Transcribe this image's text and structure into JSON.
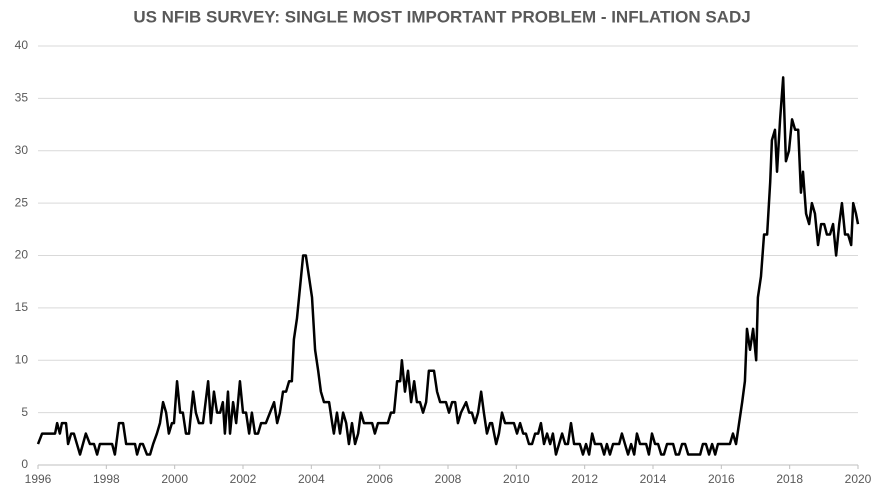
{
  "chart_data": {
    "type": "line",
    "title": "US NFIB SURVEY: SINGLE MOST IMPORTANT PROBLEM - INFLATION SADJ",
    "color": "#000000",
    "grid": true,
    "xlim": [
      1996,
      2020
    ],
    "xticks": [
      1996,
      1998,
      2000,
      2002,
      2004,
      2006,
      2008,
      2010,
      2012,
      2014,
      2016,
      2018,
      2020
    ],
    "ylim": [
      0,
      40
    ],
    "yticks": [
      0,
      5,
      10,
      15,
      20,
      25,
      30,
      35,
      40
    ],
    "x": [
      1996.0,
      1996.12,
      1996.5,
      1996.56,
      1996.64,
      1996.7,
      1996.82,
      1996.88,
      1996.97,
      1997.05,
      1997.14,
      1997.23,
      1997.4,
      1997.52,
      1997.64,
      1997.73,
      1997.81,
      1998.17,
      1998.25,
      1998.37,
      1998.49,
      1998.58,
      1998.84,
      1998.9,
      1998.99,
      1999.07,
      1999.19,
      1999.28,
      1999.37,
      1999.48,
      1999.57,
      1999.66,
      1999.75,
      1999.83,
      1999.92,
      1999.98,
      2000.07,
      2000.16,
      2000.24,
      2000.33,
      2000.42,
      2000.54,
      2000.62,
      2000.71,
      2000.83,
      2000.98,
      2001.06,
      2001.15,
      2001.24,
      2001.33,
      2001.41,
      2001.47,
      2001.56,
      2001.62,
      2001.71,
      2001.8,
      2001.91,
      2002.0,
      2002.09,
      2002.18,
      2002.26,
      2002.35,
      2002.44,
      2002.53,
      2002.67,
      2002.79,
      2002.91,
      2003.0,
      2003.08,
      2003.17,
      2003.26,
      2003.35,
      2003.43,
      2003.49,
      2003.58,
      2003.67,
      2003.76,
      2003.84,
      2003.93,
      2004.02,
      2004.11,
      2004.2,
      2004.28,
      2004.37,
      2004.52,
      2004.61,
      2004.66,
      2004.75,
      2004.84,
      2004.93,
      2005.02,
      2005.1,
      2005.19,
      2005.28,
      2005.37,
      2005.45,
      2005.54,
      2005.78,
      2005.86,
      2005.95,
      2006.24,
      2006.33,
      2006.42,
      2006.51,
      2006.6,
      2006.65,
      2006.74,
      2006.83,
      2006.92,
      2007.01,
      2007.09,
      2007.18,
      2007.27,
      2007.36,
      2007.44,
      2007.59,
      2007.68,
      2007.77,
      2007.94,
      2008.03,
      2008.12,
      2008.21,
      2008.29,
      2008.38,
      2008.53,
      2008.62,
      2008.7,
      2008.79,
      2008.88,
      2008.97,
      2009.05,
      2009.14,
      2009.23,
      2009.29,
      2009.41,
      2009.49,
      2009.58,
      2009.67,
      2009.93,
      2010.02,
      2010.11,
      2010.2,
      2010.28,
      2010.37,
      2010.46,
      2010.55,
      2010.64,
      2010.72,
      2010.81,
      2010.9,
      2010.99,
      2011.07,
      2011.16,
      2011.25,
      2011.34,
      2011.43,
      2011.51,
      2011.6,
      2011.69,
      2011.78,
      2011.86,
      2011.95,
      2012.04,
      2012.13,
      2012.22,
      2012.3,
      2012.39,
      2012.48,
      2012.57,
      2012.65,
      2012.74,
      2012.83,
      2012.92,
      2013.01,
      2013.09,
      2013.18,
      2013.27,
      2013.36,
      2013.45,
      2013.53,
      2013.62,
      2013.71,
      2013.8,
      2013.88,
      2013.97,
      2014.06,
      2014.15,
      2014.24,
      2014.32,
      2014.41,
      2014.5,
      2014.59,
      2014.67,
      2014.76,
      2014.85,
      2014.94,
      2015.03,
      2015.11,
      2015.2,
      2015.29,
      2015.38,
      2015.46,
      2015.55,
      2015.64,
      2015.73,
      2015.82,
      2015.9,
      2015.99,
      2016.08,
      2016.25,
      2016.34,
      2016.43,
      2016.52,
      2016.61,
      2016.69,
      2016.75,
      2016.84,
      2016.93,
      2017.02,
      2017.07,
      2017.16,
      2017.25,
      2017.34,
      2017.43,
      2017.48,
      2017.57,
      2017.63,
      2017.72,
      2017.81,
      2017.89,
      2017.98,
      2018.07,
      2018.16,
      2018.25,
      2018.33,
      2018.39,
      2018.48,
      2018.57,
      2018.65,
      2018.74,
      2018.83,
      2018.92,
      2019.01,
      2019.09,
      2019.18,
      2019.27,
      2019.36,
      2019.45,
      2019.53,
      2019.62,
      2019.71,
      2019.8,
      2019.86,
      2019.94,
      2020.0
    ],
    "values": [
      2,
      3,
      3,
      4,
      3,
      4,
      4,
      2,
      3,
      3,
      2,
      1,
      3,
      2,
      2,
      1,
      2,
      2,
      1,
      4,
      4,
      2,
      2,
      1,
      2,
      2,
      1,
      1,
      2,
      3,
      4,
      6,
      5,
      3,
      4,
      4,
      8,
      5,
      5,
      3,
      3,
      7,
      5,
      4,
      4,
      8,
      4,
      7,
      5,
      5,
      6,
      3,
      7,
      3,
      6,
      4,
      8,
      5,
      5,
      3,
      5,
      3,
      3,
      4,
      4,
      5,
      6,
      4,
      5,
      7,
      7,
      8,
      8,
      12,
      14,
      17,
      20,
      20,
      18,
      16,
      11,
      9,
      7,
      6,
      6,
      4,
      3,
      5,
      3,
      5,
      4,
      2,
      4,
      2,
      3,
      5,
      4,
      4,
      3,
      4,
      4,
      5,
      5,
      8,
      8,
      10,
      7,
      9,
      6,
      8,
      6,
      6,
      5,
      6,
      9,
      9,
      7,
      6,
      6,
      5,
      6,
      6,
      4,
      5,
      6,
      5,
      5,
      4,
      5,
      7,
      5,
      3,
      4,
      4,
      2,
      3,
      5,
      4,
      4,
      3,
      4,
      3,
      3,
      2,
      2,
      3,
      3,
      4,
      2,
      3,
      2,
      3,
      1,
      2,
      3,
      2,
      2,
      4,
      2,
      2,
      2,
      1,
      2,
      1,
      3,
      2,
      2,
      2,
      1,
      2,
      1,
      2,
      2,
      2,
      3,
      2,
      1,
      2,
      1,
      3,
      2,
      2,
      2,
      1,
      3,
      2,
      2,
      1,
      1,
      2,
      2,
      2,
      1,
      1,
      2,
      2,
      1,
      1,
      1,
      1,
      1,
      2,
      2,
      1,
      2,
      1,
      2,
      2,
      2,
      2,
      3,
      2,
      4,
      6,
      8,
      13,
      11,
      13,
      10,
      16,
      18,
      22,
      22,
      27,
      31,
      32,
      28,
      33,
      37,
      29,
      30,
      33,
      32,
      32,
      26,
      28,
      24,
      23,
      25,
      24,
      21,
      23,
      23,
      22,
      22,
      23,
      20,
      23,
      25,
      22,
      22,
      21,
      25,
      24,
      23
    ]
  }
}
